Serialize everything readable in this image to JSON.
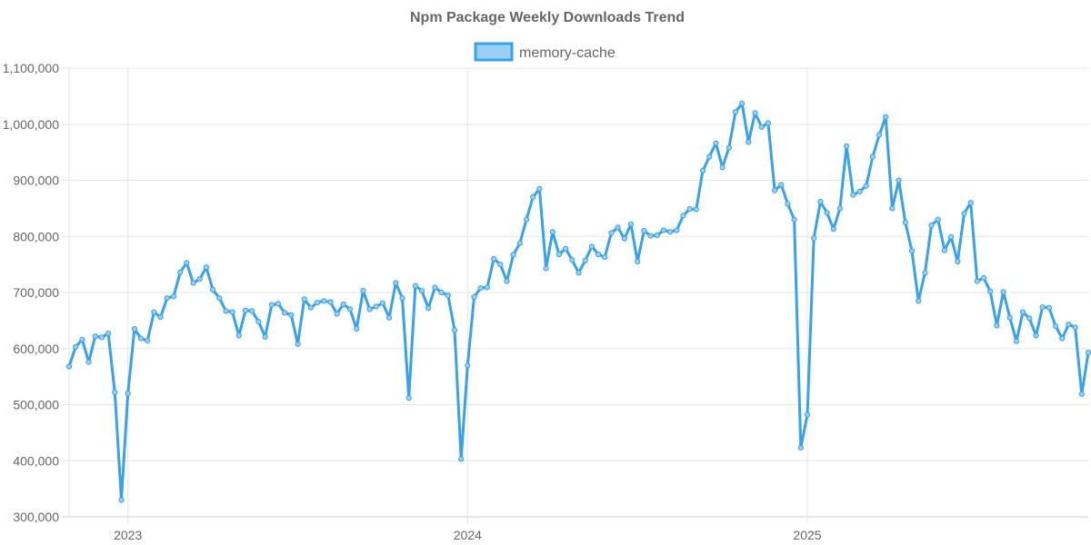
{
  "chart_data": {
    "type": "line",
    "title": "Npm Package Weekly Downloads Trend",
    "xlabel": "",
    "ylabel": "",
    "ylim": [
      300000,
      1100000
    ],
    "y_ticks": [
      300000,
      400000,
      500000,
      600000,
      700000,
      800000,
      900000,
      1000000,
      1100000
    ],
    "y_tick_labels": [
      "300,000",
      "400,000",
      "500,000",
      "600,000",
      "700,000",
      "800,000",
      "900,000",
      "1,000,000",
      "1,100,000"
    ],
    "x_range_weeks": [
      0,
      156
    ],
    "x_ticks": [
      {
        "week": 9,
        "label": "2023"
      },
      {
        "week": 61,
        "label": "2024"
      },
      {
        "week": 113,
        "label": "2025"
      }
    ],
    "grid": true,
    "legend_position": "top",
    "series": [
      {
        "name": "memory-cache",
        "color": "#36a2eb",
        "fill": "#9ad0f5",
        "values": [
          568000,
          603000,
          616000,
          576000,
          622000,
          620000,
          627000,
          522000,
          330000,
          520000,
          635000,
          618000,
          614000,
          665000,
          656000,
          690000,
          693000,
          736000,
          753000,
          717000,
          724000,
          745000,
          705000,
          690000,
          667000,
          665000,
          623000,
          668000,
          667000,
          648000,
          621000,
          678000,
          680000,
          664000,
          660000,
          608000,
          688000,
          673000,
          682000,
          685000,
          683000,
          662000,
          679000,
          670000,
          635000,
          703000,
          670000,
          675000,
          681000,
          655000,
          717000,
          690000,
          512000,
          712000,
          703000,
          672000,
          709000,
          700000,
          695000,
          633000,
          403000,
          570000,
          692000,
          708000,
          709000,
          760000,
          750000,
          720000,
          767000,
          788000,
          830000,
          870000,
          885000,
          743000,
          808000,
          768000,
          778000,
          758000,
          735000,
          757000,
          782000,
          768000,
          763000,
          806000,
          816000,
          796000,
          822000,
          755000,
          810000,
          801000,
          802000,
          811000,
          808000,
          811000,
          837000,
          849000,
          848000,
          917000,
          942000,
          966000,
          923000,
          958000,
          1022000,
          1037000,
          968000,
          1020000,
          995000,
          1002000,
          882000,
          892000,
          858000,
          830000,
          423000,
          482000,
          797000,
          862000,
          842000,
          813000,
          850000,
          961000,
          874000,
          880000,
          890000,
          942000,
          981000,
          1013000,
          850000,
          900000,
          825000,
          774000,
          685000,
          735000,
          820000,
          830000,
          775000,
          799000,
          755000,
          841000,
          860000,
          720000,
          726000,
          702000,
          641000,
          701000,
          655000,
          613000,
          665000,
          654000,
          623000,
          674000,
          673000,
          640000,
          618000,
          643000,
          638000,
          519000,
          593000
        ]
      }
    ]
  }
}
